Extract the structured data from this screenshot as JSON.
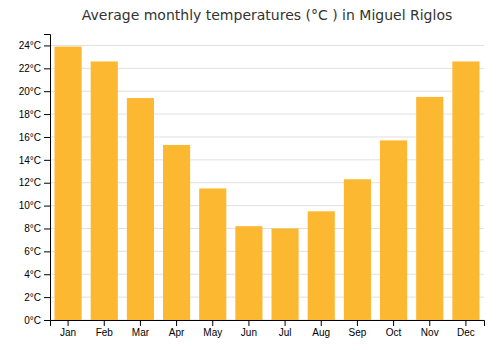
{
  "chart_data": {
    "type": "bar",
    "title": "Average monthly temperatures (°C ) in Miguel Riglos",
    "categories": [
      "Jan",
      "Feb",
      "Mar",
      "Apr",
      "May",
      "Jun",
      "Jul",
      "Aug",
      "Sep",
      "Oct",
      "Nov",
      "Dec"
    ],
    "values": [
      23.9,
      22.6,
      19.4,
      15.3,
      11.5,
      8.2,
      8.0,
      9.5,
      12.3,
      15.7,
      19.5,
      22.6
    ],
    "color": "#FBB830",
    "ylim": [
      0,
      25
    ],
    "yticks": [
      {
        "value": 0,
        "label": "0°C"
      },
      {
        "value": 2,
        "label": "2°C"
      },
      {
        "value": 4,
        "label": "4°C"
      },
      {
        "value": 6,
        "label": "6°C"
      },
      {
        "value": 8,
        "label": "8°C"
      },
      {
        "value": 10,
        "label": "10°C"
      },
      {
        "value": 12,
        "label": "12°C"
      },
      {
        "value": 14,
        "label": "14°C"
      },
      {
        "value": 16,
        "label": "16°C"
      },
      {
        "value": 18,
        "label": "18°C"
      },
      {
        "value": 20,
        "label": "20°C"
      },
      {
        "value": 22,
        "label": "22°C"
      },
      {
        "value": 24,
        "label": "24°C"
      }
    ],
    "grid": true
  }
}
